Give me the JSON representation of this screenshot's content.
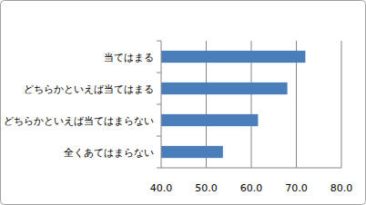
{
  "chart_data": {
    "type": "bar",
    "orientation": "horizontal",
    "categories": [
      "当てはまる",
      "どちらかといえば当てはまる",
      "どちらかといえば当てはまらない",
      "全くあてはまらない"
    ],
    "values": [
      72.0,
      68.0,
      61.5,
      53.7
    ],
    "color": "#4a7ebb",
    "xlim": [
      40,
      80
    ],
    "xticks": [
      {
        "value": 40,
        "label": "40.0"
      },
      {
        "value": 50,
        "label": "50.0"
      },
      {
        "value": 60,
        "label": "60.0"
      },
      {
        "value": 70,
        "label": "70.0"
      },
      {
        "value": 80,
        "label": "80.0"
      }
    ],
    "grid": true
  }
}
